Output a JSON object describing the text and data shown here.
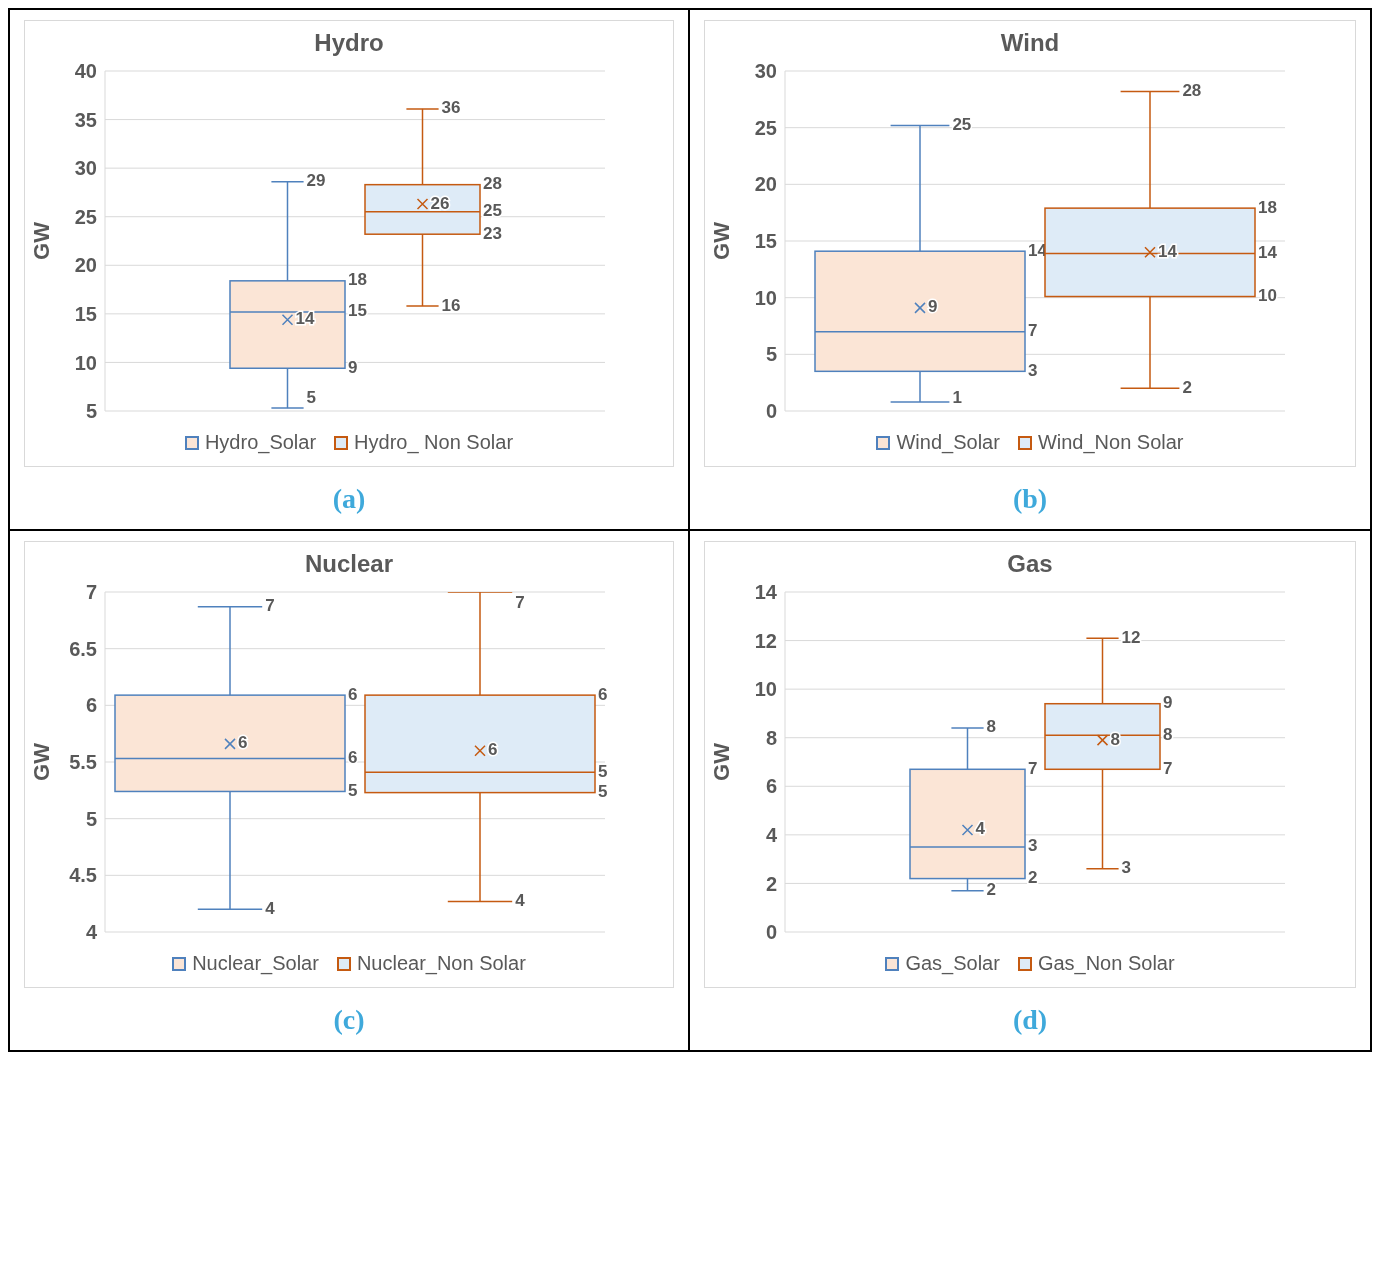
{
  "chart_data": [
    {
      "type": "box",
      "title": "Hydro",
      "ylabel": "GW",
      "categories": [
        null
      ],
      "ylim": [
        5,
        40
      ],
      "yticks": [
        5,
        10,
        15,
        20,
        25,
        30,
        35,
        40
      ],
      "grid": "y",
      "legend": "bottom",
      "annotations": [
        "(a)"
      ],
      "series": [
        {
          "name": "Hydro_Solar",
          "color": "#4f81bd",
          "boxes": [
            {
              "low": 5.3,
              "q1": 9.4,
              "median": 15.2,
              "q3": 18.4,
              "high": 28.6,
              "mean": 14.4
            }
          ],
          "value_labels": [
            [
              "5",
              "9",
              "15",
              "18",
              "29",
              "14"
            ]
          ]
        },
        {
          "name": "Hydro_ Non Solar",
          "color": "#c55a11",
          "boxes": [
            {
              "low": 15.8,
              "q1": 23.2,
              "median": 25.5,
              "q3": 28.3,
              "high": 36.1,
              "mean": 26.3
            }
          ],
          "value_labels": [
            [
              "16",
              "23",
              "25",
              "28",
              "36",
              "26"
            ]
          ]
        }
      ]
    },
    {
      "type": "box",
      "title": "Wind",
      "ylabel": "GW",
      "categories": [
        null
      ],
      "ylim": [
        0,
        30
      ],
      "yticks": [
        0,
        5,
        10,
        15,
        20,
        25,
        30
      ],
      "grid": "y",
      "legend": "bottom",
      "annotations": [
        "(b)"
      ],
      "series": [
        {
          "name": "Wind_Solar",
          "color": "#4f81bd",
          "boxes": [
            {
              "low": 0.8,
              "q1": 3.5,
              "median": 7.0,
              "q3": 14.1,
              "high": 25.2,
              "mean": 9.1
            }
          ],
          "value_labels": [
            [
              "1",
              "3",
              "7",
              "14",
              "25",
              "9"
            ]
          ]
        },
        {
          "name": "Wind_Non Solar",
          "color": "#c55a11",
          "boxes": [
            {
              "low": 2.0,
              "q1": 10.1,
              "median": 13.9,
              "q3": 17.9,
              "high": 28.2,
              "mean": 14.0
            }
          ],
          "value_labels": [
            [
              "2",
              "10",
              "14",
              "18",
              "28",
              "14"
            ]
          ]
        }
      ]
    },
    {
      "type": "box",
      "title": "Nuclear",
      "ylabel": "GW",
      "categories": [
        null
      ],
      "ylim": [
        4,
        7
      ],
      "yticks": [
        4,
        4.5,
        5,
        5.5,
        6,
        6.5,
        7
      ],
      "grid": "y",
      "legend": "bottom",
      "annotations": [
        "(c)"
      ],
      "series": [
        {
          "name": "Nuclear_Solar",
          "color": "#4f81bd",
          "boxes": [
            {
              "low": 4.2,
              "q1": 5.24,
              "median": 5.53,
              "q3": 6.09,
              "high": 6.87,
              "mean": 5.66
            }
          ],
          "value_labels": [
            [
              "4",
              "5",
              "6",
              "6",
              "7",
              "6"
            ]
          ]
        },
        {
          "name": "Nuclear_Non Solar",
          "color": "#c55a11",
          "boxes": [
            {
              "low": 4.27,
              "q1": 5.23,
              "median": 5.41,
              "q3": 6.09,
              "high": 7.0,
              "mean": 5.6
            }
          ],
          "value_labels": [
            [
              "4",
              "5",
              "5",
              "6",
              "7",
              "6"
            ]
          ]
        }
      ]
    },
    {
      "type": "box",
      "title": "Gas",
      "ylabel": "GW",
      "categories": [
        null
      ],
      "ylim": [
        0,
        14
      ],
      "yticks": [
        0,
        2,
        4,
        6,
        8,
        10,
        12,
        14
      ],
      "grid": "y",
      "legend": "bottom",
      "annotations": [
        "(d)"
      ],
      "series": [
        {
          "name": "Gas_Solar",
          "color": "#4f81bd",
          "boxes": [
            {
              "low": 1.7,
              "q1": 2.2,
              "median": 3.5,
              "q3": 6.7,
              "high": 8.4,
              "mean": 4.2
            }
          ],
          "value_labels": [
            [
              "2",
              "2",
              "3",
              "7",
              "8",
              "4"
            ]
          ]
        },
        {
          "name": "Gas_Non Solar",
          "color": "#c55a11",
          "boxes": [
            {
              "low": 2.6,
              "q1": 6.7,
              "median": 8.1,
              "q3": 9.4,
              "high": 12.1,
              "mean": 7.9
            }
          ],
          "value_labels": [
            [
              "3",
              "7",
              "8",
              "9",
              "12",
              "8"
            ]
          ]
        }
      ]
    }
  ]
}
